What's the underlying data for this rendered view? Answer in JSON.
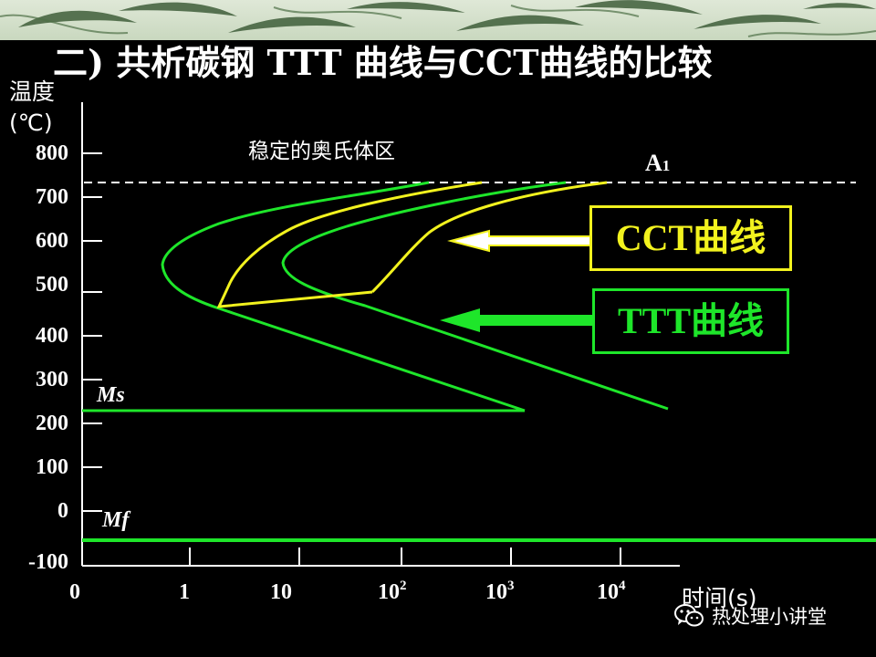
{
  "title": "二) 共析碳钢 TTT 曲线与CCT曲线的比较",
  "y_axis": {
    "label_line1": "温度",
    "label_line2": "(℃)",
    "ticks": [
      "800",
      "700",
      "600",
      "500",
      "400",
      "300",
      "200",
      "100",
      "0",
      "-100"
    ]
  },
  "x_axis": {
    "title": "时间(s)",
    "ticks": [
      {
        "base": "0",
        "exp": ""
      },
      {
        "base": "1",
        "exp": ""
      },
      {
        "base": "10",
        "exp": ""
      },
      {
        "base": "10",
        "exp": "2"
      },
      {
        "base": "10",
        "exp": "3"
      },
      {
        "base": "10",
        "exp": "4"
      }
    ]
  },
  "annotations": {
    "stable_austenite": "稳定的奥氏体区",
    "a1_main": "A",
    "a1_sub": "1",
    "ms": "Ms",
    "mf": "Mf"
  },
  "legend": {
    "cct_label": "CCT曲线",
    "ttt_label": "TTT曲线"
  },
  "colors": {
    "ttt": "#1ee62a",
    "cct": "#f2f21e",
    "background": "#000000",
    "text": "#ffffff"
  },
  "watermark": {
    "icon": "wechat-icon",
    "text": "热处理小讲堂"
  }
}
